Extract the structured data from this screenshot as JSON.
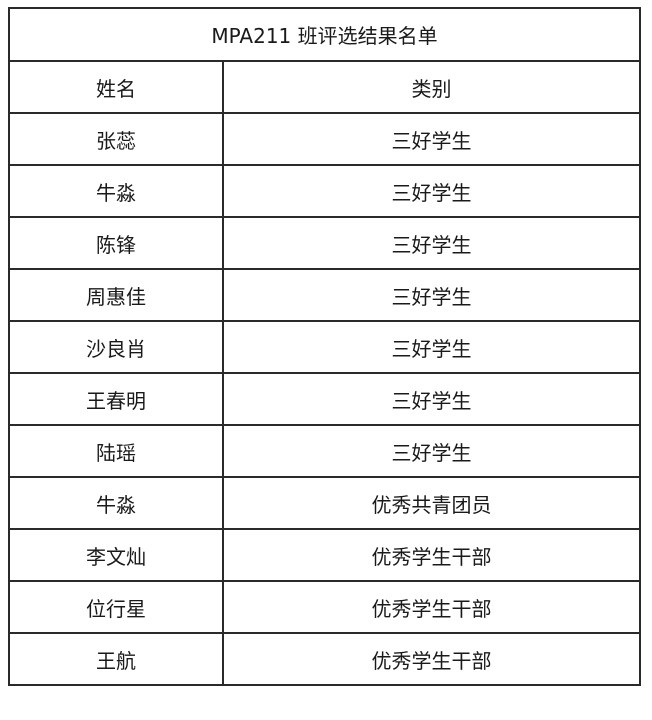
{
  "title": "MPA211 班评选结果名单",
  "headers": {
    "name": "姓名",
    "category": "类别"
  },
  "rows": [
    {
      "name": "张蕊",
      "category": "三好学生"
    },
    {
      "name": "牛淼",
      "category": "三好学生"
    },
    {
      "name": "陈锋",
      "category": "三好学生"
    },
    {
      "name": "周惠佳",
      "category": "三好学生"
    },
    {
      "name": "沙良肖",
      "category": "三好学生"
    },
    {
      "name": "王春明",
      "category": "三好学生"
    },
    {
      "name": "陆瑶",
      "category": "三好学生"
    },
    {
      "name": "牛淼",
      "category": "优秀共青团员"
    },
    {
      "name": "李文灿",
      "category": "优秀学生干部"
    },
    {
      "name": "位行星",
      "category": "优秀学生干部"
    },
    {
      "name": "王航",
      "category": "优秀学生干部"
    }
  ]
}
